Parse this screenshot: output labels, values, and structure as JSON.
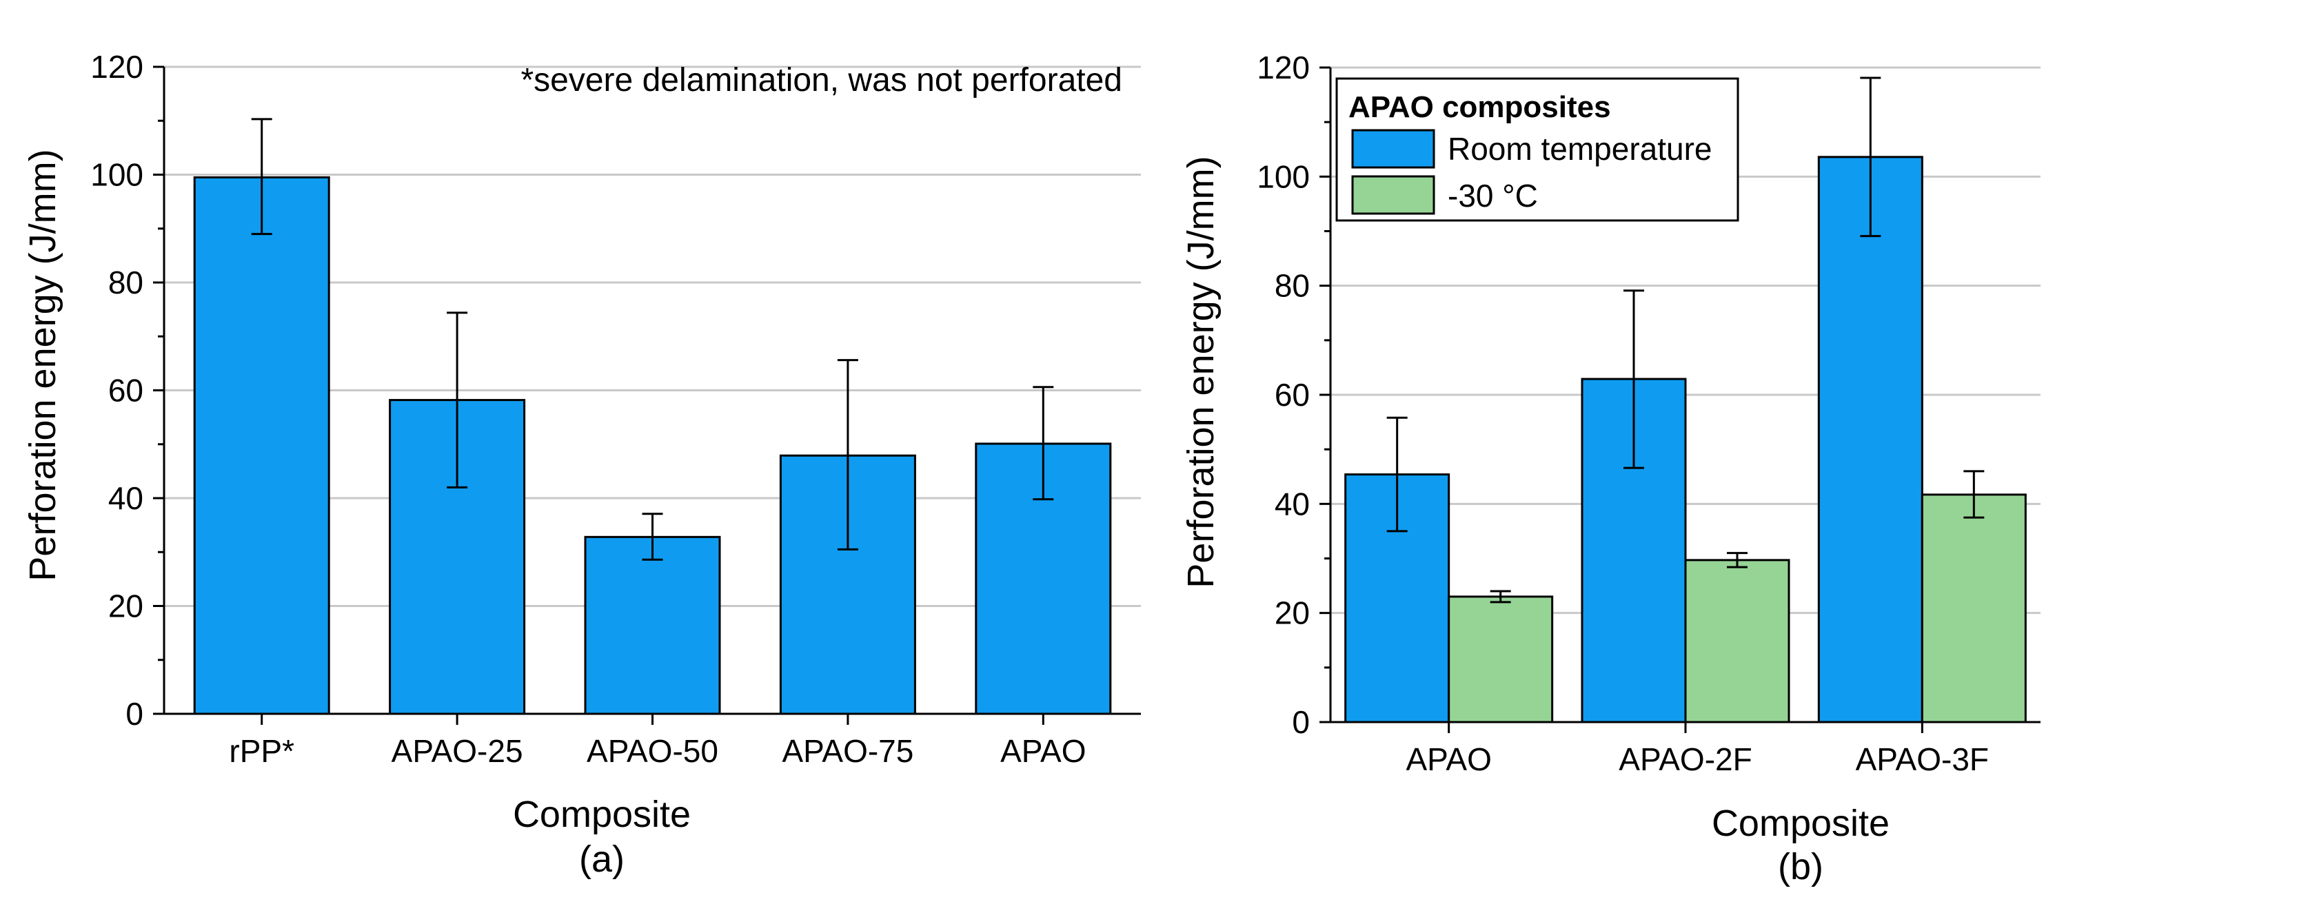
{
  "colors": {
    "room_temperature": "#0f9cf0",
    "minus_30": "#96d496",
    "grid": "#c8c8c8",
    "axis": "#000000"
  },
  "chart_data": [
    {
      "id": "a",
      "type": "bar",
      "panel_label": "(a)",
      "xlabel": "Composite",
      "ylabel": "Perforation energy (J/mm)",
      "ylim": [
        0,
        120
      ],
      "yticks": [
        0,
        20,
        40,
        60,
        80,
        100,
        120
      ],
      "grid": true,
      "annotation": "*severe delamination, was not perforated",
      "categories": [
        "rPP*",
        "APAO-25",
        "APAO-50",
        "APAO-75",
        "APAO"
      ],
      "series": [
        {
          "name": "Perforation energy",
          "color_key": "room_temperature",
          "values": [
            99.5,
            58.2,
            32.8,
            47.9,
            50.1
          ],
          "err_low": [
            89.0,
            42.0,
            28.6,
            30.5,
            39.8
          ],
          "err_high": [
            110.3,
            74.4,
            37.1,
            65.6,
            60.6
          ]
        }
      ]
    },
    {
      "id": "b",
      "type": "bar",
      "panel_label": "(b)",
      "xlabel": "Composite",
      "ylabel": "Perforation energy (J/mm)",
      "ylim": [
        0,
        120
      ],
      "yticks": [
        0,
        20,
        40,
        60,
        80,
        100,
        120
      ],
      "grid": true,
      "legend": {
        "title": "APAO composites",
        "placement": "top-left"
      },
      "categories": [
        "APAO",
        "APAO-2F",
        "APAO-3F"
      ],
      "series": [
        {
          "name": "Room temperature",
          "color_key": "room_temperature",
          "values": [
            45.4,
            62.9,
            103.6
          ],
          "err_low": [
            35.0,
            46.6,
            89.1
          ],
          "err_high": [
            55.8,
            79.1,
            118.1
          ]
        },
        {
          "name": "-30 °C",
          "color_key": "minus_30",
          "values": [
            23.0,
            29.7,
            41.7
          ],
          "err_low": [
            22.0,
            28.4,
            37.5
          ],
          "err_high": [
            24.0,
            31.0,
            46.0
          ]
        }
      ]
    }
  ]
}
